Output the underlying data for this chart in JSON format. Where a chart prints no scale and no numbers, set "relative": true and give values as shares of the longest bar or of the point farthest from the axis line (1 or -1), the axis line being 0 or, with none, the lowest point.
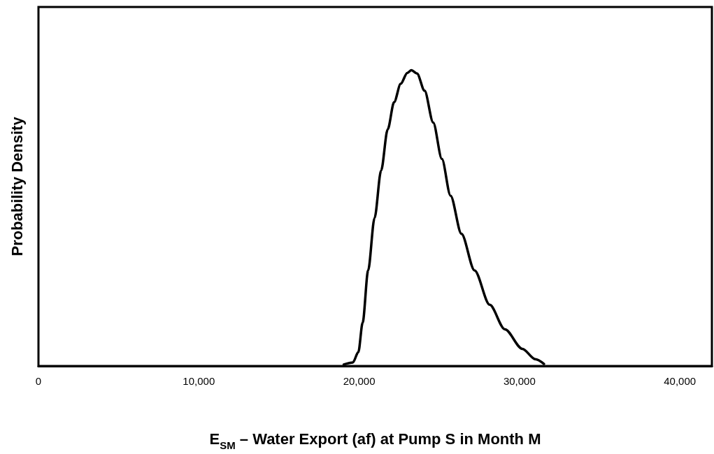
{
  "chart_data": {
    "type": "line",
    "relative": true,
    "xlabel": "E$_{SM}$ – Water Export (af) at Pump S in Month M",
    "ylabel": "Probability Density",
    "xlim": [
      0,
      42000
    ],
    "xticks": [
      0,
      {
        "value": 10000,
        "label": "10,000"
      },
      {
        "value": 20000,
        "label": "20,000"
      },
      {
        "value": 30000,
        "label": "30,000"
      },
      {
        "value": 40000,
        "label": "40,000"
      }
    ],
    "x": [
      19040,
      19610,
      19950,
      20220,
      20560,
      20960,
      21370,
      21780,
      22180,
      22590,
      23000,
      23260,
      23610,
      24080,
      24620,
      25160,
      25700,
      26380,
      27200,
      28140,
      29090,
      30180,
      30990,
      31530
    ],
    "series": [
      {
        "color": "#000000",
        "values": [
          0.005,
          0.012,
          0.047,
          0.147,
          0.323,
          0.5,
          0.661,
          0.8,
          0.892,
          0.954,
          0.991,
          1,
          0.989,
          0.931,
          0.823,
          0.7,
          0.576,
          0.447,
          0.323,
          0.207,
          0.124,
          0.058,
          0.023,
          0.007
        ]
      }
    ],
    "grid": false,
    "marker": "none",
    "line_style": "solid"
  }
}
